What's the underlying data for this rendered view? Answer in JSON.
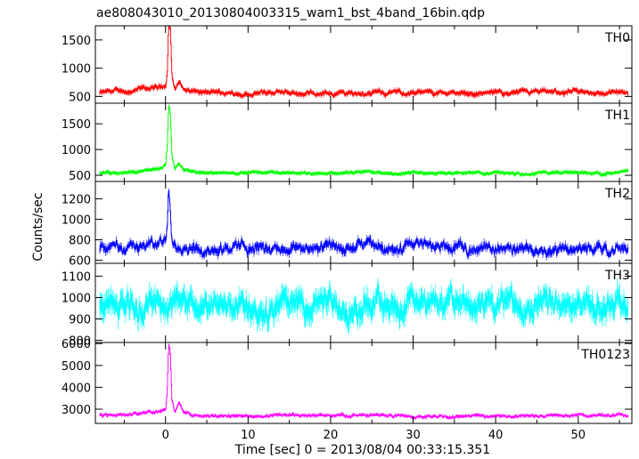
{
  "chart_data": {
    "type": "line",
    "title": "ae808043010_20130804003315_wam1_bst_4band_16bin.qdp",
    "xlabel": "Time [sec] 0 = 2013/08/04 00:33:15.351",
    "ylabel": "Counts/sec",
    "xlim": [
      -8.5,
      56.5
    ],
    "x_ticks": [
      0,
      10,
      20,
      30,
      40,
      50
    ],
    "x_tick_labels": [
      "0",
      "10",
      "20",
      "30",
      "40",
      "50"
    ],
    "grid": false,
    "panels": [
      {
        "name": "TH0",
        "color": "#ff0000",
        "ylim": [
          380,
          1750
        ],
        "y_ticks": [
          500,
          1000,
          1500
        ],
        "y_tick_labels": [
          "500",
          "1000",
          "1500"
        ],
        "baseline": 560,
        "noise": 55,
        "err": 35,
        "series": [
          {
            "x": -8.0,
            "y": 560
          },
          {
            "x": -4.0,
            "y": 600
          },
          {
            "x": -1.0,
            "y": 640
          },
          {
            "x": 0.0,
            "y": 700
          },
          {
            "x": 0.2,
            "y": 1000
          },
          {
            "x": 0.35,
            "y": 1750
          },
          {
            "x": 0.55,
            "y": 1750
          },
          {
            "x": 0.75,
            "y": 900
          },
          {
            "x": 1.1,
            "y": 600
          },
          {
            "x": 1.6,
            "y": 780
          },
          {
            "x": 2.2,
            "y": 620
          },
          {
            "x": 4.0,
            "y": 560
          },
          {
            "x": 56.0,
            "y": 560
          }
        ]
      },
      {
        "name": "TH1",
        "color": "#00ff00",
        "ylim": [
          380,
          1900
        ],
        "y_ticks": [
          500,
          1000,
          1500
        ],
        "y_tick_labels": [
          "500",
          "1000",
          "1500"
        ],
        "baseline": 550,
        "noise": 35,
        "err": 30,
        "series": [
          {
            "x": -8.0,
            "y": 540
          },
          {
            "x": -4.0,
            "y": 580
          },
          {
            "x": -1.0,
            "y": 620
          },
          {
            "x": 0.0,
            "y": 680
          },
          {
            "x": 0.2,
            "y": 1100
          },
          {
            "x": 0.35,
            "y": 1850
          },
          {
            "x": 0.55,
            "y": 1700
          },
          {
            "x": 0.75,
            "y": 900
          },
          {
            "x": 1.1,
            "y": 600
          },
          {
            "x": 1.6,
            "y": 720
          },
          {
            "x": 2.2,
            "y": 600
          },
          {
            "x": 4.0,
            "y": 550
          },
          {
            "x": 56.0,
            "y": 550
          }
        ]
      },
      {
        "name": "TH2",
        "color": "#0000ff",
        "ylim": [
          570,
          1370
        ],
        "y_ticks": [
          600,
          800,
          1000,
          1200
        ],
        "y_tick_labels": [
          "600",
          "800",
          "1000",
          "1200"
        ],
        "baseline": 720,
        "noise": 70,
        "err": 30,
        "series": [
          {
            "x": -8.0,
            "y": 720
          },
          {
            "x": -1.0,
            "y": 760
          },
          {
            "x": 0.0,
            "y": 800
          },
          {
            "x": 0.2,
            "y": 1000
          },
          {
            "x": 0.35,
            "y": 1340
          },
          {
            "x": 0.55,
            "y": 1150
          },
          {
            "x": 0.75,
            "y": 850
          },
          {
            "x": 2.0,
            "y": 740
          },
          {
            "x": 56.0,
            "y": 720
          }
        ]
      },
      {
        "name": "TH3",
        "color": "#00ffff",
        "ylim": [
          790,
          1160
        ],
        "y_ticks": [
          800,
          900,
          1000,
          1100
        ],
        "y_tick_labels": [
          "800",
          "900",
          "1000",
          "1100"
        ],
        "baseline": 965,
        "noise": 65,
        "err": 40,
        "series": [
          {
            "x": -8.0,
            "y": 960
          },
          {
            "x": 0.0,
            "y": 980
          },
          {
            "x": 56.0,
            "y": 960
          }
        ]
      },
      {
        "name": "TH0123",
        "color": "#ff00ff",
        "ylim": [
          2350,
          6050
        ],
        "y_ticks": [
          3000,
          4000,
          5000,
          6000
        ],
        "y_tick_labels": [
          "3000",
          "4000",
          "5000",
          "6000"
        ],
        "baseline": 2700,
        "noise": 90,
        "err": 60,
        "series": [
          {
            "x": -8.0,
            "y": 2700
          },
          {
            "x": -1.0,
            "y": 2850
          },
          {
            "x": 0.0,
            "y": 3000
          },
          {
            "x": 0.2,
            "y": 4000
          },
          {
            "x": 0.35,
            "y": 6000
          },
          {
            "x": 0.55,
            "y": 5600
          },
          {
            "x": 0.75,
            "y": 3400
          },
          {
            "x": 1.1,
            "y": 2800
          },
          {
            "x": 1.6,
            "y": 3300
          },
          {
            "x": 2.2,
            "y": 2850
          },
          {
            "x": 4.0,
            "y": 2700
          },
          {
            "x": 56.0,
            "y": 2700
          }
        ]
      }
    ]
  }
}
